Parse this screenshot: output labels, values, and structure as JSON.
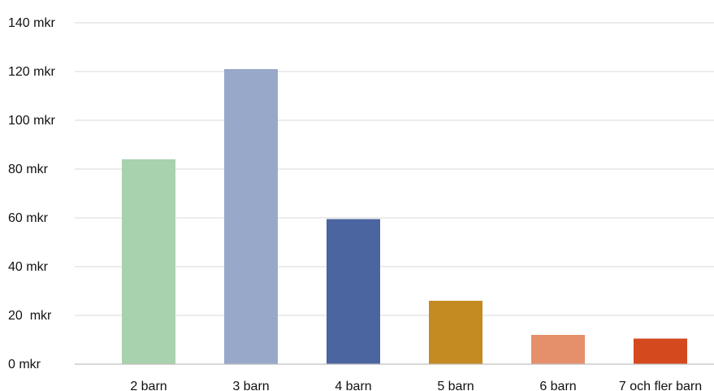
{
  "chart_data": {
    "type": "bar",
    "categories": [
      "2 barn",
      "3 barn",
      "4 barn",
      "5 barn",
      "6 barn",
      "7 och fler barn"
    ],
    "values": [
      84,
      121,
      59.5,
      26,
      12,
      10.5
    ],
    "colors": [
      "#a8d1ad",
      "#98a8c8",
      "#4b65a0",
      "#c38b22",
      "#e5906a",
      "#d44a1e"
    ],
    "title": "",
    "xlabel": "",
    "ylabel": "",
    "ylim": [
      0,
      140
    ],
    "yticks": [
      0,
      20,
      40,
      60,
      80,
      100,
      120,
      140
    ],
    "ytick_labels": [
      "0 mkr",
      "20  mkr",
      "40 mkr",
      "60 mkr",
      "80 mkr",
      "100 mkr",
      "120 mkr",
      "140 mkr"
    ],
    "grid": true,
    "legend": "none"
  }
}
